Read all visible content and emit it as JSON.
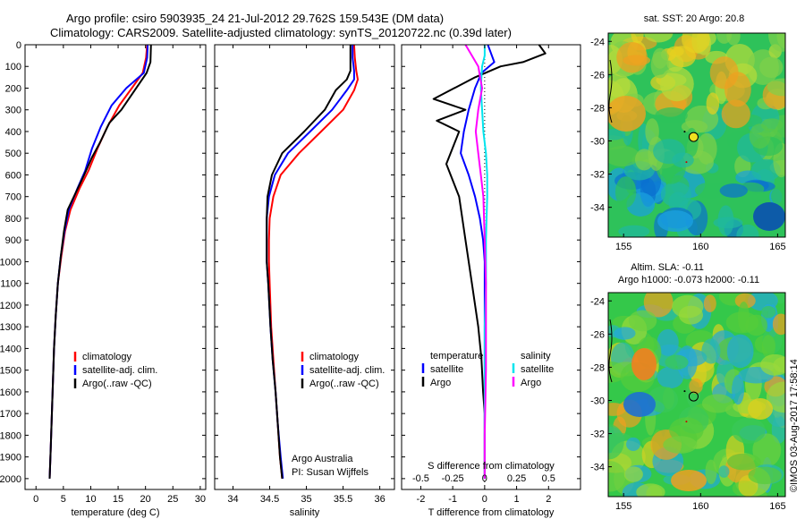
{
  "header": {
    "line1": "Argo profile: csiro 5903935_24 21-Jul-2012 29.762S 159.543E (DM data)",
    "line2": "Climatology: CARS2009. Satellite-adjusted climatology: synTS_20120722.nc (0.39d later)"
  },
  "footer": {
    "institution": "Argo Australia",
    "pi": "PI: Susan Wijffels",
    "credit": "©IMOS 03-Aug-2017 17:58:14"
  },
  "colors": {
    "climatology": "#ff0000",
    "satellite": "#0000ff",
    "argo": "#000000",
    "s_satellite": "#00e5ee",
    "s_argo": "#ff00ff"
  },
  "chart_data": [
    {
      "type": "line",
      "name": "temperature",
      "xlabel": "temperature (deg C)",
      "xlim": [
        -2,
        31
      ],
      "xticks": [
        "0",
        "5",
        "10",
        "15",
        "20",
        "25",
        "30"
      ],
      "ylim": [
        0,
        2050
      ],
      "yticks": [
        "0",
        "100",
        "200",
        "300",
        "400",
        "500",
        "600",
        "700",
        "800",
        "900",
        "1000",
        "1100",
        "1200",
        "1300",
        "1400",
        "1500",
        "1600",
        "1700",
        "1800",
        "1900",
        "2000"
      ],
      "legend": [
        "climatology",
        "satellite-adj. clim.",
        "Argo(..raw -QC)"
      ],
      "series": [
        {
          "name": "climatology",
          "x": [
            20.3,
            20.1,
            19.5,
            17.5,
            15.2,
            13,
            11.2,
            9.6,
            8,
            6.3,
            5.3,
            4.6,
            4,
            3.6,
            3.3,
            3.1,
            2.9,
            2.7,
            2.5
          ],
          "y": [
            0,
            60,
            130,
            200,
            280,
            380,
            480,
            580,
            660,
            760,
            860,
            980,
            1100,
            1250,
            1400,
            1550,
            1700,
            1850,
            2000
          ]
        },
        {
          "name": "satellite-adj. clim.",
          "x": [
            20.4,
            20.3,
            19.7,
            16.5,
            13.8,
            11.8,
            10.2,
            9,
            7.6,
            6,
            5.2,
            4.5,
            4,
            3.6,
            3.3,
            3.1,
            2.9,
            2.7,
            2.5
          ],
          "y": [
            0,
            60,
            130,
            200,
            280,
            380,
            480,
            580,
            660,
            760,
            860,
            980,
            1100,
            1250,
            1400,
            1550,
            1700,
            1850,
            2000
          ]
        },
        {
          "name": "Argo(..raw -QC)",
          "x": [
            21,
            20.9,
            20.2,
            15.6,
            13.4,
            11.7,
            10.2,
            8.8,
            7.3,
            5.8,
            5.1,
            4.5,
            4,
            3.6,
            3.3,
            3.1,
            2.9,
            2.7,
            2.5
          ],
          "y": [
            0,
            80,
            130,
            300,
            360,
            450,
            520,
            600,
            680,
            760,
            860,
            980,
            1100,
            1250,
            1400,
            1550,
            1700,
            1850,
            2000
          ]
        }
      ]
    },
    {
      "type": "line",
      "name": "salinity",
      "xlabel": "salinity",
      "xlim": [
        33.75,
        36.2
      ],
      "xticks": [
        "34",
        "34.5",
        "35",
        "35.5",
        "36"
      ],
      "ylim": [
        0,
        2050
      ],
      "legend": [
        "climatology",
        "satellite-adj. clim.",
        "Argo(..raw -QC)"
      ],
      "series": [
        {
          "name": "climatology",
          "x": [
            35.65,
            35.66,
            35.68,
            35.7,
            35.65,
            35.5,
            35.2,
            34.9,
            34.65,
            34.55,
            34.5,
            34.49,
            34.49,
            34.5,
            34.52,
            34.55,
            34.58,
            34.61,
            34.64,
            34.67
          ],
          "y": [
            0,
            60,
            120,
            160,
            210,
            300,
            400,
            500,
            600,
            700,
            800,
            900,
            1000,
            1100,
            1300,
            1450,
            1600,
            1750,
            1900,
            2000
          ]
        },
        {
          "name": "satellite-adj. clim.",
          "x": [
            35.63,
            35.63,
            35.65,
            35.65,
            35.55,
            35.35,
            35.05,
            34.75,
            34.57,
            34.49,
            34.46,
            34.46,
            34.46,
            34.48,
            34.51,
            34.54,
            34.58,
            34.61,
            34.65,
            34.68
          ],
          "y": [
            0,
            60,
            120,
            160,
            210,
            300,
            400,
            500,
            600,
            700,
            800,
            900,
            1000,
            1100,
            1300,
            1450,
            1600,
            1750,
            1900,
            2000
          ]
        },
        {
          "name": "Argo(..raw -QC)",
          "x": [
            35.6,
            35.6,
            35.6,
            35.55,
            35.4,
            35.25,
            34.97,
            34.67,
            34.53,
            34.47,
            34.46,
            34.46,
            34.46,
            34.48,
            34.51,
            34.54,
            34.58,
            34.61,
            34.64,
            34.67
          ],
          "y": [
            0,
            60,
            120,
            160,
            210,
            300,
            400,
            500,
            600,
            700,
            800,
            900,
            1000,
            1100,
            1300,
            1450,
            1600,
            1750,
            1900,
            2000
          ]
        }
      ]
    },
    {
      "type": "line",
      "name": "difference",
      "xlabel": "T difference from climatology",
      "xlabel2": "S difference from climatology",
      "xlim": [
        -2.6,
        3
      ],
      "xticks": [
        "-2",
        "-1",
        "0",
        "1",
        "2"
      ],
      "s_xticks": [
        "-0.5",
        "-0.25",
        "0",
        "0.25",
        "0.5"
      ],
      "ylim": [
        0,
        2050
      ],
      "legend_temperature": [
        "temperature",
        "satellite",
        "Argo"
      ],
      "legend_salinity": [
        "salinity",
        "satellite",
        "Argo"
      ],
      "series": [
        {
          "name": "T satellite",
          "x": [
            0.1,
            0.2,
            0.3,
            -0.1,
            -0.3,
            -0.5,
            -0.65,
            -0.75,
            -0.5,
            -0.3,
            -0.15,
            -0.05,
            0,
            0,
            0,
            0,
            0,
            0,
            0
          ],
          "y": [
            0,
            40,
            80,
            130,
            200,
            300,
            400,
            500,
            600,
            700,
            800,
            900,
            1000,
            1200,
            1400,
            1600,
            1700,
            1850,
            2000
          ]
        },
        {
          "name": "T Argo",
          "x": [
            1.7,
            1.9,
            1.2,
            0.5,
            -0.3,
            -1.6,
            -0.6,
            -1.5,
            -0.8,
            -1.2,
            -0.8,
            -0.6,
            -0.4,
            -0.2,
            -0.1,
            -0.05,
            0,
            0,
            0
          ],
          "y": [
            0,
            40,
            80,
            100,
            150,
            250,
            300,
            350,
            400,
            550,
            700,
            900,
            1100,
            1300,
            1450,
            1600,
            1700,
            1850,
            2000
          ]
        },
        {
          "name": "S satellite",
          "x": [
            0,
            0,
            -0.02,
            -0.03,
            -0.02,
            -0.01,
            0.01,
            0.02,
            0.02,
            0.01,
            0.01,
            0,
            0,
            0,
            0
          ],
          "y": [
            0,
            50,
            100,
            200,
            300,
            400,
            500,
            600,
            700,
            900,
            1100,
            1300,
            1500,
            1800,
            2000
          ]
        },
        {
          "name": "S Argo",
          "x": [
            -0.15,
            -0.1,
            -0.05,
            -0.02,
            -0.05,
            -0.07,
            -0.05,
            -0.03,
            -0.01,
            0,
            0.01,
            0.01,
            0.01,
            0,
            0
          ],
          "y": [
            0,
            50,
            100,
            200,
            300,
            400,
            500,
            600,
            700,
            900,
            1100,
            1300,
            1500,
            1800,
            2000
          ]
        }
      ]
    },
    {
      "type": "heatmap",
      "name": "sst_map",
      "title": "sat. SST: 20 Argo: 20.8",
      "xlim": [
        154,
        165.5
      ],
      "ylim": [
        -35.8,
        -23.5
      ],
      "xticks": [
        "155",
        "160",
        "165"
      ],
      "yticks": [
        "-24",
        "-26",
        "-28",
        "-30",
        "-32",
        "-34"
      ],
      "argo_position": [
        159.543,
        -29.762
      ]
    },
    {
      "type": "heatmap",
      "name": "sla_map",
      "title_line1": "Altim. SLA: -0.11",
      "title_line2": "Argo h1000: -0.073 h2000: -0.11",
      "xlim": [
        154,
        165.5
      ],
      "ylim": [
        -35.8,
        -23.5
      ],
      "xticks": [
        "155",
        "160",
        "165"
      ],
      "yticks": [
        "-24",
        "-26",
        "-28",
        "-30",
        "-32",
        "-34"
      ],
      "argo_position": [
        159.543,
        -29.762
      ]
    }
  ]
}
